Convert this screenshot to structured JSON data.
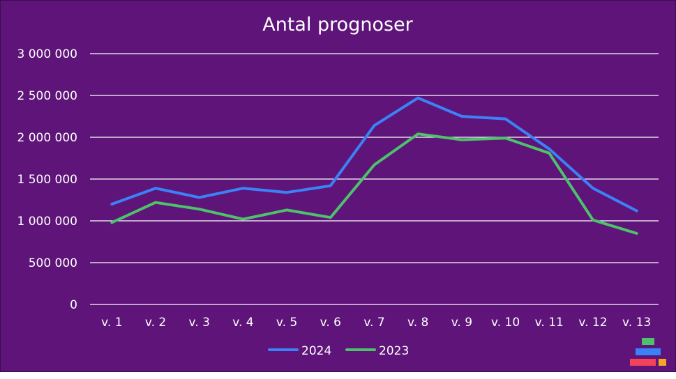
{
  "chart_data": {
    "type": "line",
    "title": "Antal prognoser",
    "xlabel": "",
    "ylabel": "",
    "categories": [
      "v. 1",
      "v. 2",
      "v. 3",
      "v. 4",
      "v. 5",
      "v. 6",
      "v. 7",
      "v. 8",
      "v. 9",
      "v. 10",
      "v. 11",
      "v. 12",
      "v. 13"
    ],
    "ylim": [
      0,
      3000000
    ],
    "yticks": [
      0,
      500000,
      1000000,
      1500000,
      2000000,
      2500000,
      3000000
    ],
    "ytick_labels": [
      "0",
      "500 000",
      "1 000 000",
      "1 500 000",
      "2 000 000",
      "2 500 000",
      "3 000 000"
    ],
    "grid": true,
    "legend_position": "bottom",
    "series": [
      {
        "name": "2024",
        "color": "#3b82f6",
        "values": [
          1200000,
          1390000,
          1280000,
          1390000,
          1340000,
          1420000,
          2140000,
          2470000,
          2250000,
          2220000,
          1860000,
          1390000,
          1120000
        ]
      },
      {
        "name": "2023",
        "color": "#4cc26a",
        "values": [
          980000,
          1220000,
          1140000,
          1020000,
          1130000,
          1040000,
          1670000,
          2040000,
          1970000,
          1990000,
          1810000,
          1010000,
          850000
        ]
      }
    ]
  },
  "logo": {
    "icon": "stacked-bars-logo",
    "colors": [
      "#4cc26a",
      "#3b82f6",
      "#f2435a",
      "#f5a623"
    ]
  }
}
